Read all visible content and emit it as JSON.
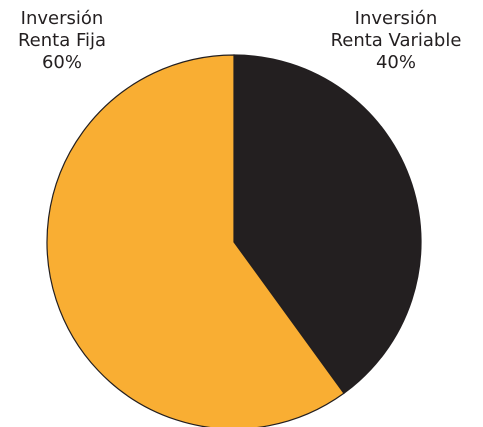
{
  "chart_data": {
    "type": "pie",
    "title": "",
    "slices": [
      {
        "label_lines": [
          "Inversión",
          "Renta Variable",
          "40%"
        ],
        "value": 40,
        "color": "#231f20"
      },
      {
        "label_lines": [
          "Inversión",
          "Renta Fija",
          "60%"
        ],
        "value": 60,
        "color": "#f9ae33"
      }
    ],
    "start_angle_deg": 0,
    "direction": "clockwise",
    "stroke_color": "#231f20"
  }
}
